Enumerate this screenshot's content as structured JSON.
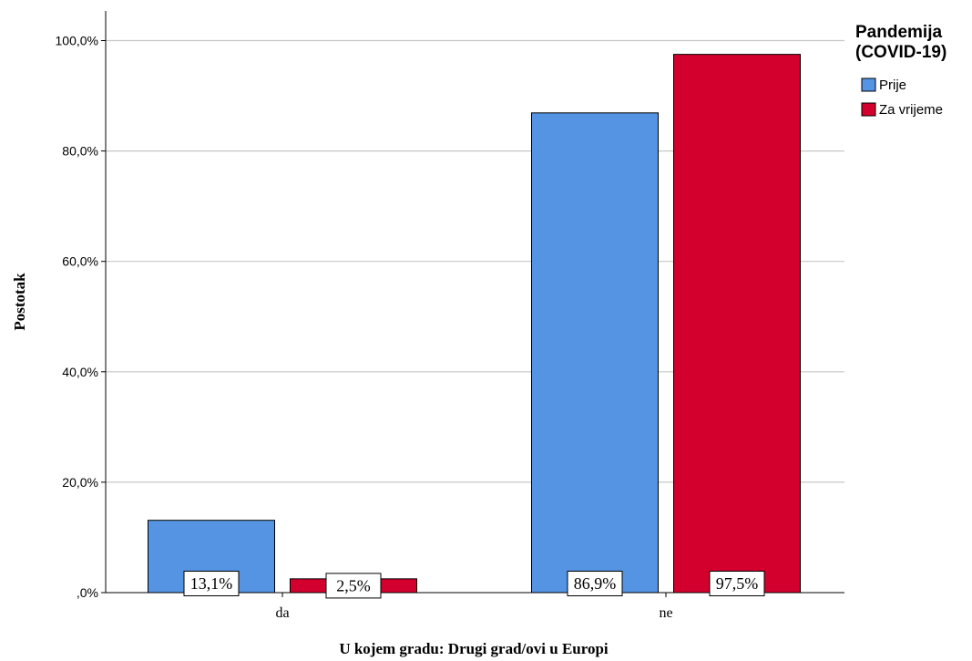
{
  "chart_data": {
    "type": "bar",
    "categories": [
      "da",
      "ne"
    ],
    "series": [
      {
        "name": "Prije",
        "values": [
          13.1,
          86.9
        ],
        "labels": [
          "13,1%",
          "86,9%"
        ],
        "color": "#5594e3"
      },
      {
        "name": "Za vrijeme",
        "values": [
          2.5,
          97.5
        ],
        "labels": [
          "2,5%",
          "97,5%"
        ],
        "color": "#d3002d"
      }
    ],
    "xlabel": "U kojem gradu: Drugi grad/ovi u Europi",
    "ylabel": "Postotak",
    "ylim": [
      0,
      105
    ],
    "yticks": [
      0,
      20,
      40,
      60,
      80,
      100
    ],
    "ytick_labels": [
      ",0%",
      "20,0%",
      "40,0%",
      "60,0%",
      "80,0%",
      "100,0%"
    ],
    "grid": true,
    "legend": {
      "title": [
        "Pandemija",
        "(COVID-19)"
      ],
      "placement": "top-right",
      "entries": [
        "Prije",
        "Za vrijeme"
      ]
    }
  }
}
